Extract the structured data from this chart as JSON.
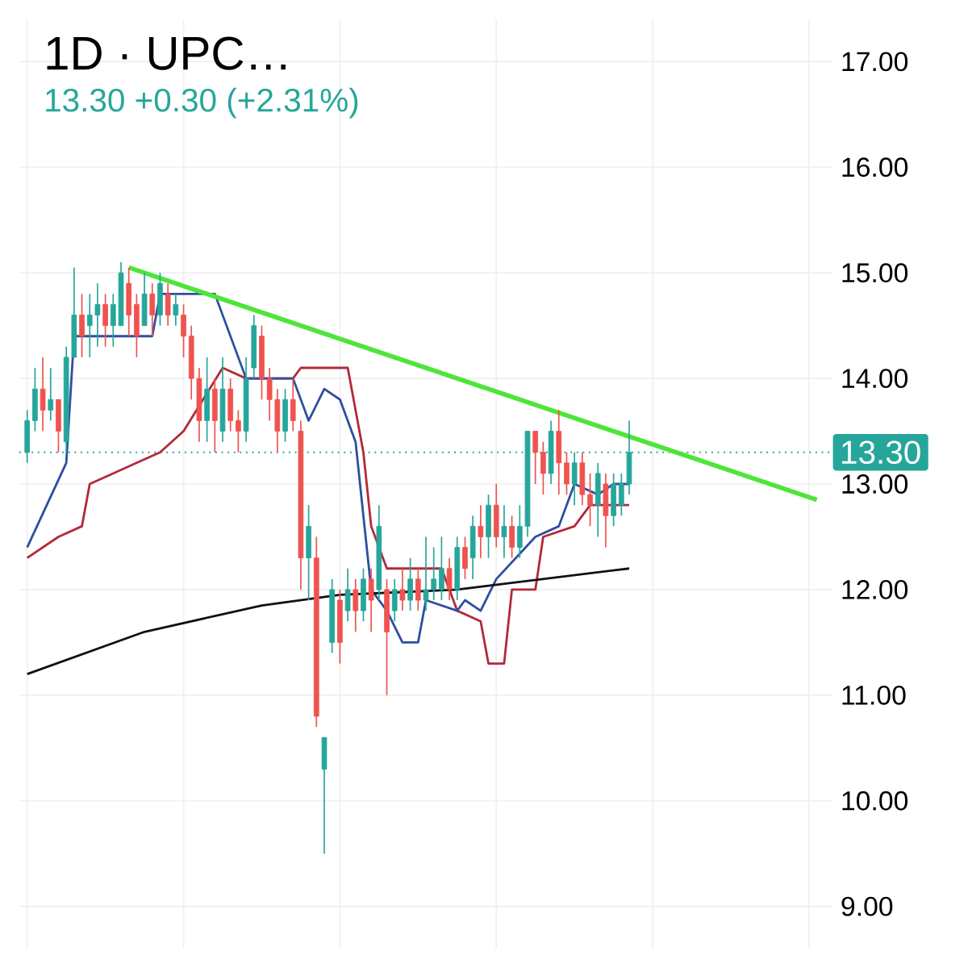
{
  "chart_data": {
    "type": "candlestick",
    "subtitle": "1D · UPC…",
    "annotations": [
      "13.30 +0.30 (+2.31%)"
    ],
    "categories": [
      null,
      null,
      null,
      null,
      null,
      null,
      null,
      null,
      null,
      null,
      null,
      null,
      null,
      null,
      null,
      null,
      null,
      null,
      null,
      null,
      null,
      null,
      null,
      null,
      null,
      null,
      null,
      null,
      null,
      null,
      null,
      null,
      null,
      null,
      null,
      null,
      null,
      null,
      null,
      null,
      null,
      null,
      null,
      null,
      null,
      null,
      null,
      null,
      null,
      null,
      null,
      null,
      null,
      null,
      null,
      null,
      null,
      null,
      null,
      null,
      null,
      null,
      null,
      null,
      null,
      null,
      null,
      null,
      null,
      null,
      null,
      null,
      null,
      null,
      null,
      null,
      null,
      null,
      null,
      null,
      null,
      null,
      null,
      null,
      null,
      null,
      null,
      null,
      null,
      null,
      null,
      null,
      null,
      null,
      null,
      null,
      null,
      null,
      null,
      null,
      null,
      null
    ],
    "ohlc": [
      [
        13.3,
        13.7,
        13.2,
        13.6
      ],
      [
        13.6,
        14.1,
        13.5,
        13.9
      ],
      [
        13.9,
        14.2,
        13.5,
        13.7
      ],
      [
        13.7,
        14.1,
        13.6,
        13.8
      ],
      [
        13.8,
        13.8,
        13.3,
        13.5
      ],
      [
        13.4,
        14.3,
        13.3,
        14.2
      ],
      [
        14.2,
        15.05,
        14.2,
        14.6
      ],
      [
        14.6,
        14.8,
        14.2,
        14.4
      ],
      [
        14.5,
        14.8,
        14.2,
        14.6
      ],
      [
        14.6,
        14.9,
        14.3,
        14.7
      ],
      [
        14.7,
        14.8,
        14.3,
        14.5
      ],
      [
        14.5,
        14.8,
        14.3,
        14.7
      ],
      [
        14.5,
        15.1,
        14.5,
        15.0
      ],
      [
        14.9,
        15.05,
        14.4,
        14.6
      ],
      [
        14.7,
        14.8,
        14.2,
        14.4
      ],
      [
        14.5,
        15.0,
        14.5,
        14.8
      ],
      [
        14.8,
        14.9,
        14.4,
        14.6
      ],
      [
        14.6,
        15.0,
        14.5,
        14.9
      ],
      [
        14.8,
        14.9,
        14.5,
        14.6
      ],
      [
        14.6,
        14.8,
        14.5,
        14.7
      ],
      [
        14.6,
        14.7,
        14.2,
        14.4
      ],
      [
        14.4,
        14.5,
        13.8,
        14.0
      ],
      [
        14.0,
        14.1,
        13.4,
        13.6
      ],
      [
        13.6,
        14.2,
        13.4,
        13.9
      ],
      [
        13.9,
        14.0,
        13.3,
        13.6
      ],
      [
        13.5,
        14.2,
        13.4,
        13.9
      ],
      [
        13.9,
        14.0,
        13.5,
        13.6
      ],
      [
        13.6,
        13.7,
        13.3,
        13.5
      ],
      [
        13.5,
        14.2,
        13.4,
        14.0
      ],
      [
        14.1,
        14.6,
        14.0,
        14.5
      ],
      [
        14.4,
        14.5,
        13.8,
        14.0
      ],
      [
        14.0,
        14.1,
        13.6,
        13.8
      ],
      [
        13.8,
        13.9,
        13.3,
        13.5
      ],
      [
        13.5,
        13.9,
        13.4,
        13.8
      ],
      [
        13.8,
        14.0,
        13.5,
        13.6
      ],
      [
        13.5,
        13.6,
        12.0,
        12.3
      ],
      [
        12.3,
        12.8,
        11.9,
        12.6
      ],
      [
        12.3,
        12.5,
        10.7,
        10.8
      ],
      [
        10.3,
        10.6,
        9.5,
        10.6
      ],
      [
        11.5,
        12.1,
        11.4,
        12.0
      ],
      [
        11.9,
        12.0,
        11.3,
        11.5
      ],
      [
        11.8,
        12.2,
        11.7,
        12.0
      ],
      [
        12.0,
        12.1,
        11.6,
        11.8
      ],
      [
        11.8,
        12.2,
        11.7,
        12.1
      ],
      [
        12.1,
        12.2,
        11.6,
        11.9
      ],
      [
        12.0,
        12.8,
        11.9,
        12.6
      ],
      [
        12.0,
        12.1,
        11.0,
        11.6
      ],
      [
        11.8,
        12.1,
        11.7,
        12.0
      ],
      [
        12.0,
        12.2,
        11.8,
        11.9
      ],
      [
        11.9,
        12.3,
        11.8,
        12.1
      ],
      [
        12.1,
        12.2,
        11.8,
        11.9
      ],
      [
        11.9,
        12.5,
        11.8,
        12.0
      ],
      [
        12.0,
        12.4,
        11.9,
        12.1
      ],
      [
        12.0,
        12.5,
        11.9,
        12.2
      ],
      [
        12.2,
        12.3,
        11.9,
        12.0
      ],
      [
        12.0,
        12.5,
        11.9,
        12.4
      ],
      [
        12.4,
        12.5,
        12.1,
        12.2
      ],
      [
        12.3,
        12.7,
        12.1,
        12.6
      ],
      [
        12.6,
        12.8,
        12.3,
        12.5
      ],
      [
        12.5,
        12.9,
        12.3,
        12.8
      ],
      [
        12.8,
        13.0,
        12.4,
        12.5
      ],
      [
        12.5,
        12.8,
        12.3,
        12.6
      ],
      [
        12.6,
        12.7,
        12.3,
        12.4
      ],
      [
        12.4,
        12.8,
        12.3,
        12.6
      ],
      [
        12.6,
        13.5,
        12.5,
        13.5
      ],
      [
        13.5,
        13.5,
        13.0,
        13.3
      ],
      [
        13.3,
        13.4,
        12.9,
        13.1
      ],
      [
        13.1,
        13.6,
        13.0,
        13.5
      ],
      [
        13.5,
        13.7,
        12.9,
        13.2
      ],
      [
        13.2,
        13.3,
        12.9,
        13.0
      ],
      [
        13.0,
        13.3,
        12.8,
        13.2
      ],
      [
        13.2,
        13.3,
        12.8,
        12.9
      ],
      [
        12.9,
        13.1,
        12.6,
        12.8
      ],
      [
        12.8,
        13.2,
        12.5,
        13.1
      ],
      [
        13.0,
        13.1,
        12.4,
        12.7
      ],
      [
        12.7,
        13.1,
        12.6,
        13.0
      ],
      [
        12.8,
        13.1,
        12.7,
        13.0
      ],
      [
        13.0,
        13.6,
        12.9,
        13.3
      ],
      null,
      null,
      null,
      null,
      null,
      null,
      null,
      null,
      null,
      null,
      null,
      null,
      null,
      null,
      null,
      null,
      null,
      null,
      null,
      null,
      null,
      null,
      null,
      null
    ],
    "colors": [
      "#26a69a",
      "#26a69a",
      "#ef5350",
      "#26a69a",
      "#ef5350",
      "#26a69a",
      "#26a69a",
      "#ef5350",
      "#26a69a",
      "#26a69a",
      "#ef5350",
      "#26a69a",
      "#26a69a",
      "#ef5350",
      "#ef5350",
      "#26a69a",
      "#ef5350",
      "#26a69a",
      "#ef5350",
      "#26a69a",
      "#ef5350",
      "#ef5350",
      "#ef5350",
      "#26a69a",
      "#ef5350",
      "#26a69a",
      "#ef5350",
      "#ef5350",
      "#26a69a",
      "#26a69a",
      "#ef5350",
      "#ef5350",
      "#ef5350",
      "#26a69a",
      "#ef5350",
      "#ef5350",
      "#26a69a",
      "#ef5350",
      "#26a69a",
      "#26a69a",
      "#ef5350",
      "#26a69a",
      "#ef5350",
      "#26a69a",
      "#ef5350",
      "#26a69a",
      "#ef5350",
      "#26a69a",
      "#ef5350",
      "#26a69a",
      "#ef5350",
      "#26a69a",
      "#26a69a",
      "#26a69a",
      "#ef5350",
      "#26a69a",
      "#ef5350",
      "#26a69a",
      "#ef5350",
      "#26a69a",
      "#ef5350",
      "#26a69a",
      "#ef5350",
      "#26a69a",
      "#26a69a",
      "#ef5350",
      "#ef5350",
      "#26a69a",
      "#ef5350",
      "#ef5350",
      "#26a69a",
      "#ef5350",
      "#ef5350",
      "#26a69a",
      "#ef5350",
      "#26a69a",
      "#26a69a",
      "#26a69a",
      null,
      null,
      null,
      null,
      null,
      null,
      null,
      null,
      null,
      null,
      null,
      null,
      null,
      null,
      null,
      null,
      null,
      null,
      null,
      null,
      null,
      null,
      null,
      null
    ],
    "series": [
      {
        "type": "line",
        "color": "#b22a3a",
        "values": [
          12.3,
          null,
          null,
          null,
          12.5,
          null,
          null,
          12.6,
          13.0,
          null,
          null,
          null,
          null,
          null,
          13.2,
          null,
          null,
          13.3,
          null,
          null,
          13.5,
          null,
          null,
          null,
          null,
          14.1,
          null,
          null,
          14.0,
          null,
          null,
          null,
          null,
          null,
          14.0,
          14.1,
          null,
          null,
          null,
          null,
          null,
          14.1,
          null,
          13.3,
          12.6,
          null,
          12.2,
          null,
          null,
          null,
          null,
          null,
          null,
          12.2,
          null,
          11.8,
          null,
          null,
          11.7,
          11.3,
          null,
          11.3,
          12.0,
          null,
          null,
          12.0,
          12.5,
          null,
          null,
          null,
          12.6,
          null,
          12.8,
          null,
          null,
          null,
          null,
          12.8,
          null,
          null,
          null,
          null,
          null,
          null,
          null,
          null,
          null,
          null,
          null,
          null,
          null,
          null,
          null,
          null,
          null,
          null,
          null,
          null,
          null,
          null,
          null,
          null
        ]
      },
      {
        "type": "line",
        "color": "#2e4fa0",
        "values": [
          12.4,
          null,
          null,
          null,
          null,
          13.2,
          14.4,
          null,
          null,
          null,
          null,
          null,
          null,
          null,
          null,
          null,
          14.4,
          14.8,
          null,
          null,
          null,
          null,
          null,
          null,
          14.8,
          null,
          null,
          null,
          14.0,
          null,
          null,
          null,
          null,
          null,
          14.0,
          null,
          13.6,
          null,
          13.9,
          null,
          13.8,
          null,
          13.4,
          null,
          12.0,
          null,
          11.8,
          null,
          11.5,
          null,
          11.5,
          11.9,
          null,
          null,
          null,
          11.8,
          11.9,
          null,
          11.8,
          null,
          12.1,
          null,
          null,
          null,
          null,
          12.5,
          null,
          null,
          12.6,
          null,
          13.0,
          null,
          null,
          12.9,
          null,
          13.0,
          null,
          13.0,
          null,
          null,
          null,
          null,
          null,
          null,
          null,
          null,
          null,
          null,
          null,
          null,
          null,
          null,
          null,
          null,
          null,
          null,
          null,
          null,
          null,
          null,
          null,
          null
        ]
      },
      {
        "type": "line",
        "color": "#111111",
        "values": [
          11.2,
          null,
          null,
          null,
          null,
          null,
          null,
          null,
          null,
          null,
          null,
          null,
          null,
          null,
          null,
          11.6,
          null,
          null,
          null,
          null,
          null,
          null,
          null,
          null,
          null,
          null,
          null,
          null,
          null,
          null,
          11.85,
          null,
          null,
          null,
          null,
          null,
          null,
          null,
          null,
          null,
          11.95,
          null,
          null,
          null,
          null,
          null,
          null,
          null,
          null,
          null,
          null,
          null,
          null,
          null,
          null,
          12.0,
          null,
          null,
          null,
          null,
          null,
          null,
          null,
          null,
          null,
          null,
          null,
          null,
          null,
          null,
          null,
          null,
          null,
          null,
          null,
          null,
          null,
          12.2,
          null,
          null,
          null,
          null,
          null,
          null,
          null,
          null,
          null,
          null,
          null,
          null,
          null,
          null,
          null,
          null,
          null,
          null,
          null,
          null,
          null,
          null,
          null,
          null
        ]
      },
      {
        "type": "line",
        "color": "#4ee53a",
        "values": [
          null,
          null,
          null,
          null,
          null,
          null,
          null,
          null,
          null,
          null,
          null,
          null,
          null,
          15.05,
          null,
          null,
          null,
          null,
          null,
          null,
          null,
          null,
          null,
          null,
          null,
          null,
          null,
          null,
          null,
          null,
          null,
          null,
          null,
          null,
          null,
          null,
          null,
          null,
          null,
          null,
          null,
          null,
          null,
          null,
          null,
          null,
          null,
          null,
          null,
          null,
          null,
          null,
          null,
          null,
          null,
          null,
          null,
          null,
          null,
          null,
          null,
          null,
          null,
          null,
          null,
          null,
          null,
          null,
          null,
          null,
          null,
          null,
          null,
          null,
          null,
          null,
          null,
          null,
          null,
          null,
          null,
          null,
          null,
          null,
          null,
          null,
          null,
          null,
          null,
          null,
          null,
          null,
          null,
          null,
          null,
          null,
          null,
          null,
          null,
          null,
          null,
          12.85
        ]
      }
    ],
    "ref_lines": [
      {
        "axis": "y",
        "value": 13.3,
        "label": "13.30",
        "color": "#26a69a",
        "line_style": "dotted"
      }
    ],
    "ylim": [
      8.6,
      17.4
    ],
    "yticks": [
      {
        "value": 9,
        "label": "9.00"
      },
      {
        "value": 10,
        "label": "10.00"
      },
      {
        "value": 11,
        "label": "11.00"
      },
      {
        "value": 12,
        "label": "12.00"
      },
      {
        "value": 13,
        "label": "13.00"
      },
      {
        "value": 14,
        "label": "14.00"
      },
      {
        "value": 15,
        "label": "15.00"
      },
      {
        "value": 16,
        "label": "16.00"
      },
      {
        "value": 17,
        "label": "17.00"
      }
    ],
    "tick_labels": "y",
    "grid": true
  }
}
